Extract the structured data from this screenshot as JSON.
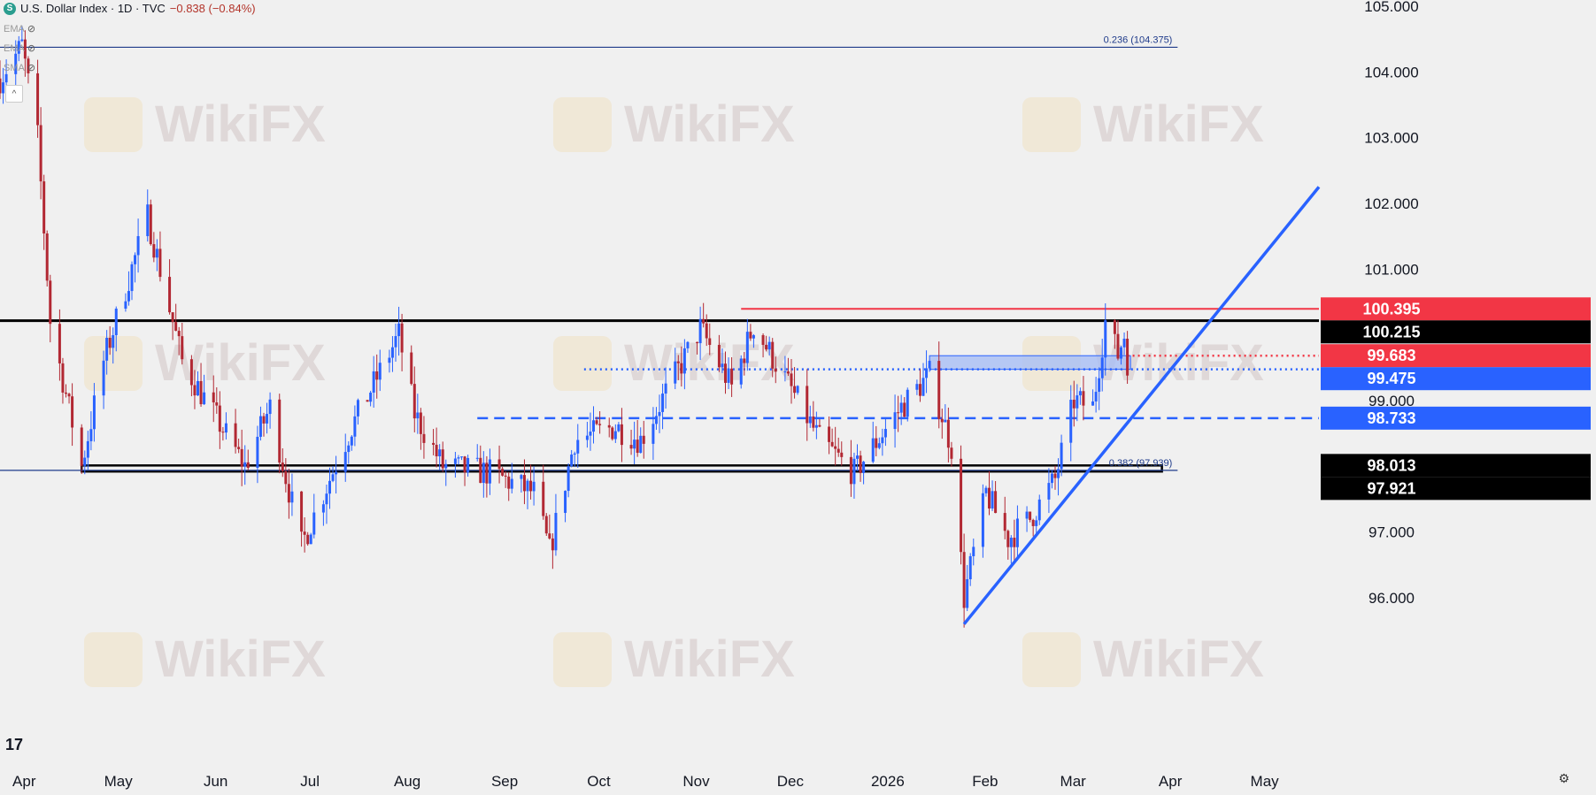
{
  "header": {
    "symbol_badge": "S",
    "title": "U.S. Dollar Index · 1D · TVC",
    "change": "−0.838 (−0.84%)",
    "indicators": [
      {
        "label": "EMA"
      },
      {
        "label": "EMA"
      },
      {
        "label": "SMA"
      }
    ],
    "collapse_glyph": "^"
  },
  "watermark": "WikiFX",
  "colors": {
    "background": "#f0f0f0",
    "bull": "#2962ff",
    "bear": "#b22833",
    "resistance_red": "#f23645",
    "trend_blue": "#2962ff",
    "zone_fill": "#a8bef5"
  },
  "chart_data": {
    "type": "candlestick",
    "title": "U.S. Dollar Index · 1D · TVC",
    "ylim": [
      95.1,
      105.2
    ],
    "y_ticks": [
      96,
      97,
      98,
      99,
      100,
      101,
      102,
      103,
      104,
      105
    ],
    "y_tick_labels": [
      "96.000",
      "97.000",
      "98.000",
      "99.000",
      "100.000",
      "101.000",
      "102.000",
      "103.000",
      "104.000",
      "105.000"
    ],
    "x_labels": [
      {
        "label": "Apr",
        "date": "2025-04-01"
      },
      {
        "label": "May",
        "date": "2025-05-01"
      },
      {
        "label": "Jun",
        "date": "2025-06-01"
      },
      {
        "label": "Jul",
        "date": "2025-07-01"
      },
      {
        "label": "Aug",
        "date": "2025-08-01"
      },
      {
        "label": "Sep",
        "date": "2025-09-01"
      },
      {
        "label": "Oct",
        "date": "2025-10-01"
      },
      {
        "label": "Nov",
        "date": "2025-11-01"
      },
      {
        "label": "Dec",
        "date": "2025-12-01"
      },
      {
        "label": "2026",
        "date": "2026-01-01"
      },
      {
        "label": "Feb",
        "date": "2026-02-01"
      },
      {
        "label": "Mar",
        "date": "2026-03-01"
      },
      {
        "label": "Apr",
        "date": "2026-04-01"
      },
      {
        "label": "May",
        "date": "2026-05-01"
      }
    ],
    "x_range": [
      "2025-03-26",
      "2026-05-20"
    ],
    "anchors": [
      [
        "2025-03-26",
        103.9
      ],
      [
        "2025-04-02",
        104.4
      ],
      [
        "2025-04-07",
        103.0
      ],
      [
        "2025-04-11",
        100.2
      ],
      [
        "2025-04-21",
        98.0
      ],
      [
        "2025-04-28",
        99.6
      ],
      [
        "2025-05-12",
        101.8
      ],
      [
        "2025-05-23",
        99.6
      ],
      [
        "2025-06-12",
        98.0
      ],
      [
        "2025-06-20",
        98.9
      ],
      [
        "2025-06-30",
        96.8
      ],
      [
        "2025-07-16",
        98.6
      ],
      [
        "2025-07-31",
        100.0
      ],
      [
        "2025-08-05",
        98.8
      ],
      [
        "2025-08-14",
        98.0
      ],
      [
        "2025-08-29",
        97.9
      ],
      [
        "2025-09-12",
        97.6
      ],
      [
        "2025-09-17",
        96.7
      ],
      [
        "2025-09-25",
        98.4
      ],
      [
        "2025-10-08",
        98.6
      ],
      [
        "2025-10-16",
        98.4
      ],
      [
        "2025-11-04",
        100.1
      ],
      [
        "2025-11-14",
        99.2
      ],
      [
        "2025-11-21",
        100.15
      ],
      [
        "2025-12-05",
        99.0
      ],
      [
        "2025-12-12",
        98.4
      ],
      [
        "2025-12-23",
        97.9
      ],
      [
        "2026-01-07",
        98.9
      ],
      [
        "2026-01-16",
        99.4
      ],
      [
        "2026-01-23",
        98.3
      ],
      [
        "2026-01-27",
        96.0
      ],
      [
        "2026-02-03",
        97.6
      ],
      [
        "2026-02-10",
        96.9
      ],
      [
        "2026-02-17",
        97.2
      ],
      [
        "2026-02-25",
        97.8
      ],
      [
        "2026-03-03",
        99.0
      ],
      [
        "2026-03-09",
        98.9
      ],
      [
        "2026-03-13",
        100.2
      ],
      [
        "2026-03-17",
        99.7
      ],
      [
        "2026-03-19",
        100.0
      ],
      [
        "2026-03-20",
        99.6
      ]
    ],
    "levels": [
      {
        "name": "fib-0.236",
        "value": 104.375,
        "label": "0.236 (104.375)",
        "style": "solid-thin",
        "color": "#1e3a8a",
        "from": "2025-03-26",
        "to": "2026-04-05"
      },
      {
        "name": "black-upper",
        "value": 100.215,
        "style": "solid-thick",
        "color": "#000000",
        "from": "2025-03-26",
        "to": "2026-05-20"
      },
      {
        "name": "red-resistance",
        "value": 100.395,
        "style": "solid",
        "color": "#f23645",
        "from": "2025-11-17",
        "to": "2026-05-20"
      },
      {
        "name": "red-dotted",
        "value": 99.683,
        "style": "dotted",
        "color": "#f23645",
        "from": "2026-03-20",
        "to": "2026-05-20"
      },
      {
        "name": "blue-dotted",
        "value": 99.475,
        "style": "dotted",
        "color": "#2962ff",
        "from": "2025-09-28",
        "to": "2026-05-20"
      },
      {
        "name": "blue-dashed",
        "value": 98.733,
        "style": "dashed",
        "color": "#2962ff",
        "from": "2025-08-25",
        "to": "2026-05-20"
      },
      {
        "name": "fib-0.382",
        "value": 97.939,
        "label": "0.382 (97.939)",
        "style": "solid-thin",
        "color": "#1e3a8a",
        "from": "2025-03-26",
        "to": "2026-04-05"
      }
    ],
    "support_zone": {
      "from": "2025-04-21",
      "to": "2026-03-31",
      "low": 97.921,
      "high": 98.013
    },
    "resistance_zone": {
      "from": "2026-01-16",
      "to": "2026-03-21",
      "low": 99.475,
      "high": 99.683
    },
    "trendline": {
      "start": {
        "date": "2026-01-27",
        "value": 95.6
      },
      "end": {
        "date": "2026-05-20",
        "value": 102.25
      }
    },
    "price_labels": [
      {
        "text": "100.395",
        "value": 100.395,
        "bg": "#f23645",
        "fg": "#ffffff"
      },
      {
        "text": "100.215",
        "value": 100.215,
        "bg": "#000000",
        "fg": "#ffffff"
      },
      {
        "text": "99.683",
        "value": 99.683,
        "bg": "#f23645",
        "fg": "#ffffff"
      },
      {
        "text": "99.475",
        "value": 99.475,
        "bg": "#2962ff",
        "fg": "#ffffff"
      },
      {
        "text": "98.733",
        "value": 98.733,
        "bg": "#2962ff",
        "fg": "#ffffff"
      },
      {
        "text": "98.013",
        "value": 98.013,
        "bg": "#000000",
        "fg": "#ffffff"
      },
      {
        "text": "97.921",
        "value": 97.921,
        "bg": "#000000",
        "fg": "#ffffff"
      }
    ]
  }
}
